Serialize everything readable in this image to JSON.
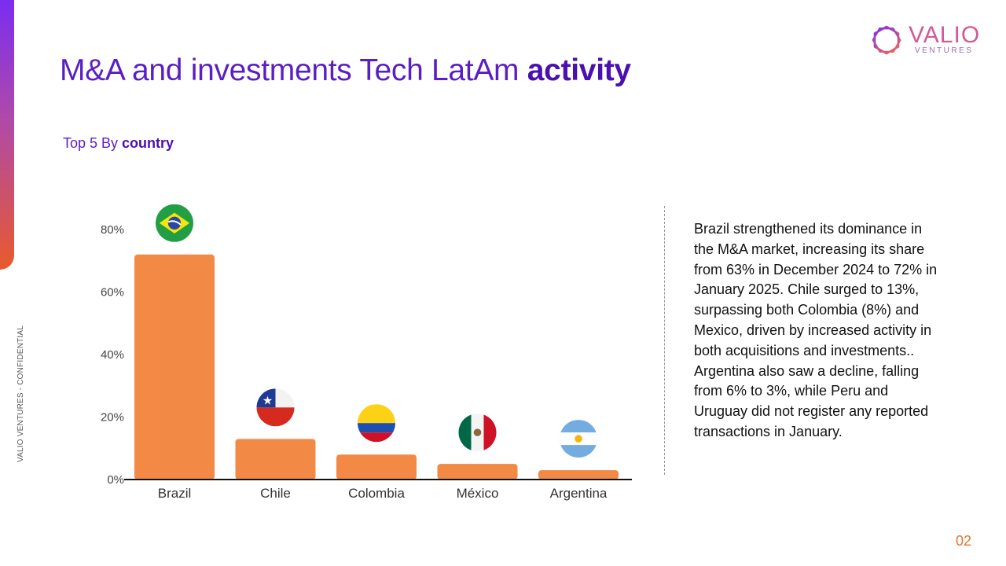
{
  "slide": {
    "title_regular": "M&A and investments Tech LatAm ",
    "title_bold": "activity",
    "subtitle_regular": "Top 5 By ",
    "subtitle_bold": "country",
    "side_label": "VALIO VENTURES - CONFIDENTIAL",
    "page_number": "02",
    "description": "Brazil strengthened its dominance in the M&A market, increasing its share from 63% in December 2024 to 72% in January 2025. Chile surged to 13%, surpassing both Colombia (8%) and Mexico, driven by increased activity in both acquisitions and investments.. Argentina also saw a decline, falling from 6% to 3%, while Peru and Uruguay did not register any reported transactions in January."
  },
  "logo": {
    "word": "VALIO",
    "sub": "VENTURES",
    "color": "#d05a9a"
  },
  "colors": {
    "accent": "#5a1fc4",
    "bar": "#f28a45",
    "page_number": "#e8722c"
  },
  "chart_data": {
    "type": "bar",
    "categories": [
      "Brazil",
      "Chile",
      "Colombia",
      "México",
      "Argentina"
    ],
    "values": [
      72,
      13,
      8,
      5,
      3
    ],
    "ylim": [
      0,
      80
    ],
    "yticks": [
      0,
      20,
      40,
      60,
      80
    ],
    "ytick_labels": [
      "0%",
      "20%",
      "40%",
      "60%",
      "80%"
    ],
    "bar_color": "#f28a45",
    "category_icons": [
      "brazil-flag-icon",
      "chile-flag-icon",
      "colombia-flag-icon",
      "mexico-flag-icon",
      "argentina-flag-icon"
    ],
    "grid": false,
    "legend": "none",
    "title": "",
    "xlabel": "",
    "ylabel": ""
  }
}
